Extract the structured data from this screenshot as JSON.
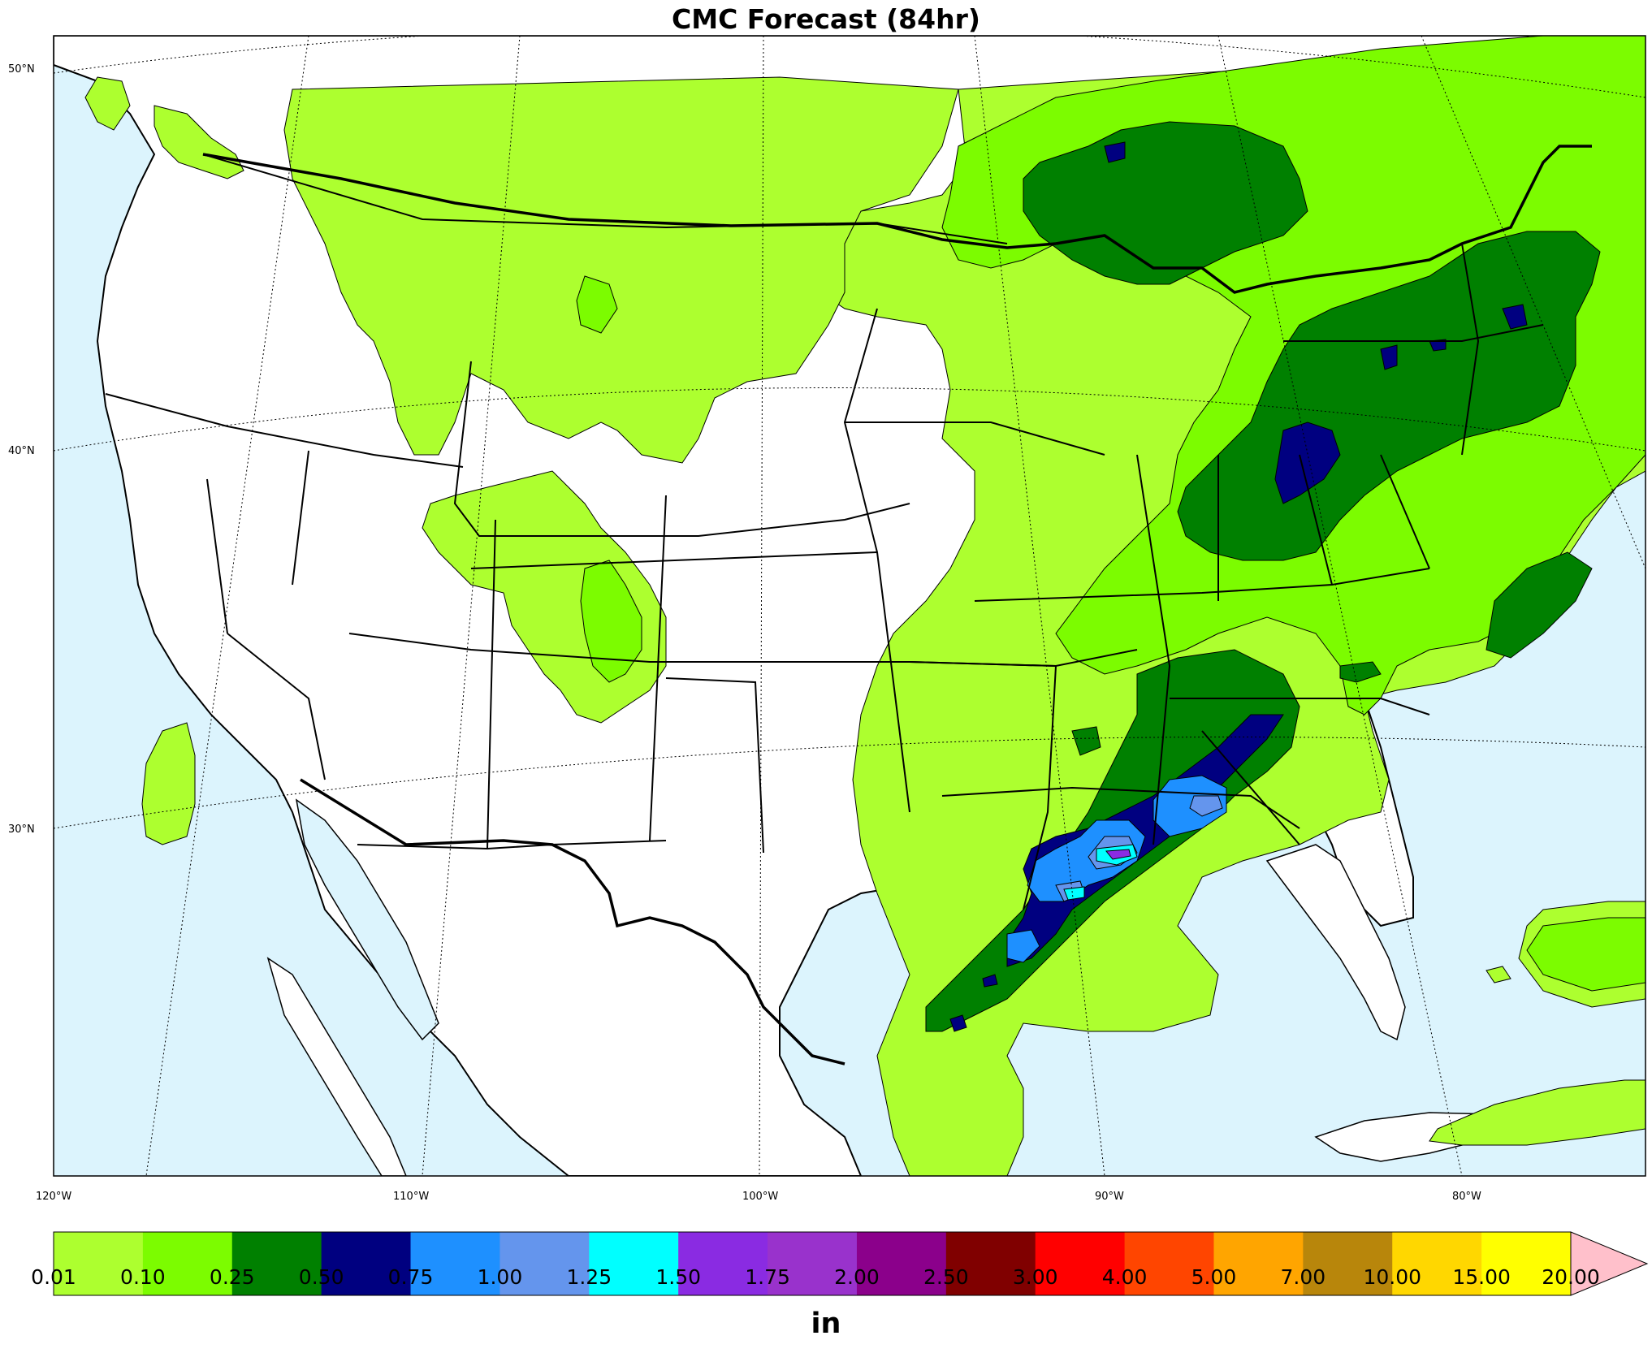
{
  "title": "CMC Forecast (84hr)",
  "units": "in",
  "lat_labels": [
    "50°N",
    "40°N",
    "30°N"
  ],
  "lon_labels": [
    "120°W",
    "110°W",
    "100°W",
    "90°W",
    "80°W"
  ],
  "colorbar": {
    "ticks": [
      "0.01",
      "0.10",
      "0.25",
      "0.50",
      "0.75",
      "1.00",
      "1.25",
      "1.50",
      "1.75",
      "2.00",
      "2.50",
      "3.00",
      "4.00",
      "5.00",
      "7.00",
      "10.00",
      "15.00",
      "20.00"
    ],
    "colors": [
      "#adff2f",
      "#7cfc00",
      "#008000",
      "#000080",
      "#1e90ff",
      "#6495ed",
      "#00ffff",
      "#8a2be2",
      "#9932cc",
      "#8b008b",
      "#800000",
      "#ff0000",
      "#ff4500",
      "#ffa500",
      "#b8860b",
      "#ffd700",
      "#ffff00"
    ],
    "extend_color": "#ffc0cb"
  },
  "colors": {
    "water": "#dcf4fd",
    "land": "#ffffff"
  }
}
